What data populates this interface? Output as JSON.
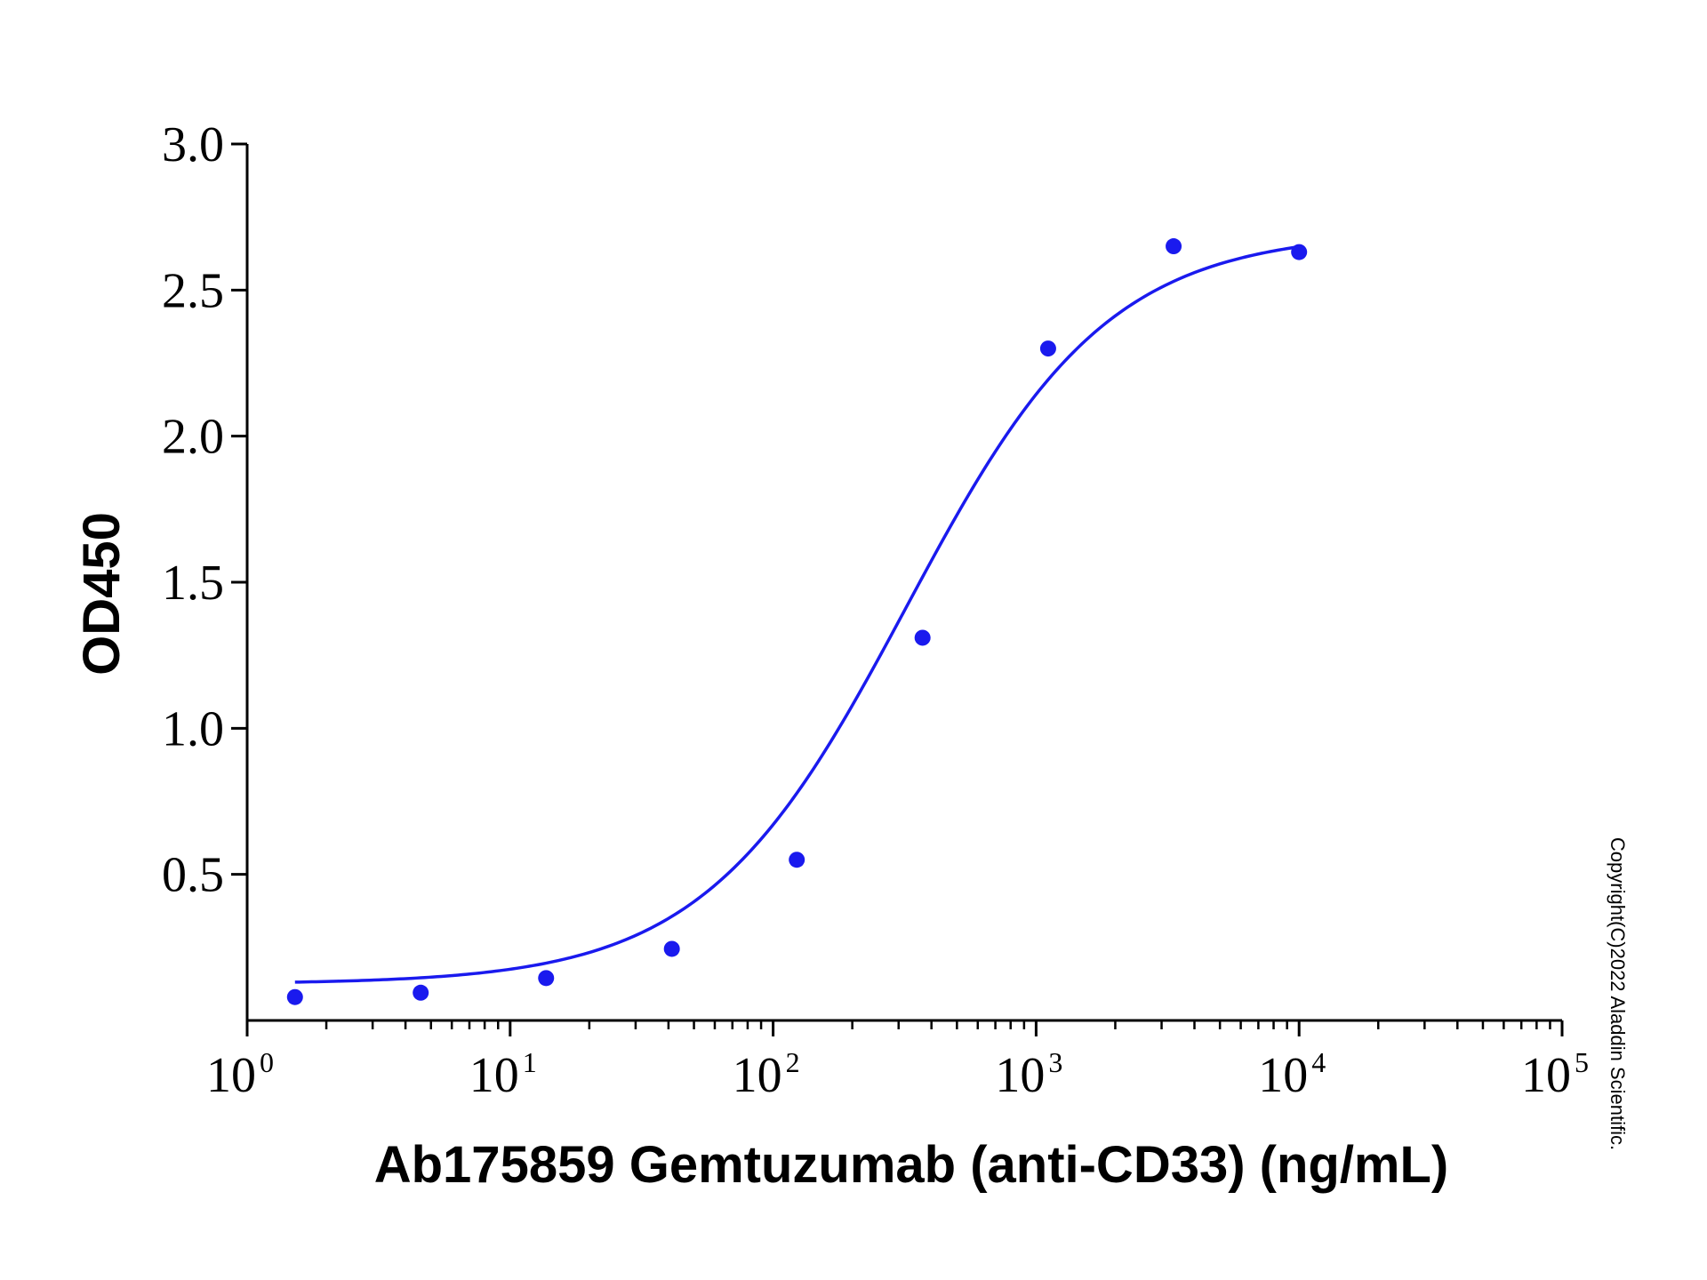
{
  "chart_data": {
    "type": "scatter",
    "xlabel": "Ab175859 Gemtuzumab (anti-CD33) (ng/mL)",
    "ylabel": "OD450",
    "xscale": "log",
    "xlim": [
      1,
      100000
    ],
    "ylim": [
      0,
      3.0
    ],
    "x_ticks": [
      {
        "base": "10",
        "exp": "0",
        "value": 1
      },
      {
        "base": "10",
        "exp": "1",
        "value": 10
      },
      {
        "base": "10",
        "exp": "2",
        "value": 100
      },
      {
        "base": "10",
        "exp": "3",
        "value": 1000
      },
      {
        "base": "10",
        "exp": "4",
        "value": 10000
      },
      {
        "base": "10",
        "exp": "5",
        "value": 100000
      }
    ],
    "y_ticks": [
      {
        "label": "0.5",
        "value": 0.5
      },
      {
        "label": "1.0",
        "value": 1.0
      },
      {
        "label": "1.5",
        "value": 1.5
      },
      {
        "label": "2.0",
        "value": 2.0
      },
      {
        "label": "2.5",
        "value": 2.5
      },
      {
        "label": "3.0",
        "value": 3.0
      }
    ],
    "series": [
      {
        "x": [
          1.52,
          4.57,
          13.7,
          41.2,
          123,
          370,
          1111,
          3333,
          10000
        ],
        "y": [
          0.08,
          0.095,
          0.145,
          0.245,
          0.55,
          1.31,
          2.3,
          2.65,
          2.63
        ],
        "color": "#1a1aee",
        "fit": {
          "model": "4PL",
          "bottom": 0.125,
          "top": 2.7,
          "ec50": 320,
          "hill": 1.13,
          "x_range": [
            1.52,
            10000
          ]
        }
      }
    ],
    "grid": false,
    "legend": "none"
  },
  "copyright": "Copyright(C)2022 Aladdin Scientific."
}
